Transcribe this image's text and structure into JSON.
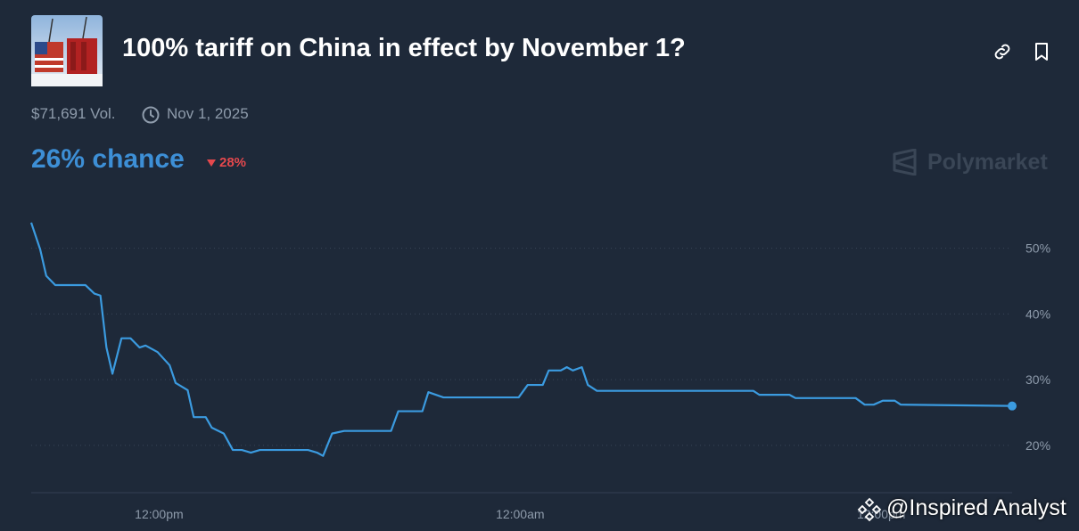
{
  "header": {
    "title": "100% tariff on China in effect by November 1?",
    "volume": "$71,691 Vol.",
    "end_date": "Nov 1, 2025",
    "chance": "26% chance",
    "change": "28%",
    "brand": "Polymarket"
  },
  "watermark": "@Inspired Analyst",
  "chart_data": {
    "type": "line",
    "color": "#3b9be0",
    "x": [
      0,
      0.3,
      0.5,
      0.8,
      1.8,
      2.1,
      2.3,
      2.5,
      2.7,
      3.0,
      3.3,
      3.6,
      3.8,
      4.2,
      4.6,
      4.8,
      5.2,
      5.4,
      5.8,
      6.0,
      6.4,
      6.7,
      7.0,
      7.3,
      7.6,
      9.2,
      9.5,
      9.7,
      10.0,
      10.4,
      11.96,
      12.2,
      13.0,
      13.2,
      13.7,
      16.2,
      16.5,
      17.0,
      17.2,
      17.6,
      17.8,
      18.0,
      18.3,
      18.5,
      18.8,
      24.0,
      24.2,
      25.2,
      25.4,
      27.4,
      27.7,
      28.0,
      28.3,
      28.7,
      28.9,
      32.6
    ],
    "values": [
      53.9,
      49.8,
      45.8,
      44.4,
      44.4,
      43.1,
      42.8,
      34.9,
      30.9,
      36.3,
      36.3,
      34.9,
      35.2,
      34.2,
      32.2,
      29.5,
      28.4,
      24.3,
      24.3,
      22.7,
      21.8,
      19.3,
      19.3,
      18.9,
      19.3,
      19.3,
      18.9,
      18.4,
      21.8,
      22.2,
      22.2,
      25.2,
      25.2,
      28.1,
      27.3,
      27.3,
      29.2,
      29.2,
      31.4,
      31.4,
      31.9,
      31.4,
      31.9,
      29.2,
      28.3,
      28.3,
      27.7,
      27.7,
      27.2,
      27.2,
      26.2,
      26.2,
      26.8,
      26.8,
      26.2,
      26
    ],
    "xlim": [
      0,
      32.6
    ],
    "ylim": [
      12.8,
      56.6
    ],
    "xticks": [
      {
        "value": 4.25,
        "label": "12:00pm"
      },
      {
        "value": 16.25,
        "label": "12:00am"
      },
      {
        "value": 28.25,
        "label": "12:00pm"
      }
    ],
    "yticks": [
      {
        "value": 20,
        "label": "20%"
      },
      {
        "value": 30,
        "label": "30%"
      },
      {
        "value": 40,
        "label": "40%"
      },
      {
        "value": 50,
        "label": "50%"
      }
    ],
    "grid": true
  }
}
